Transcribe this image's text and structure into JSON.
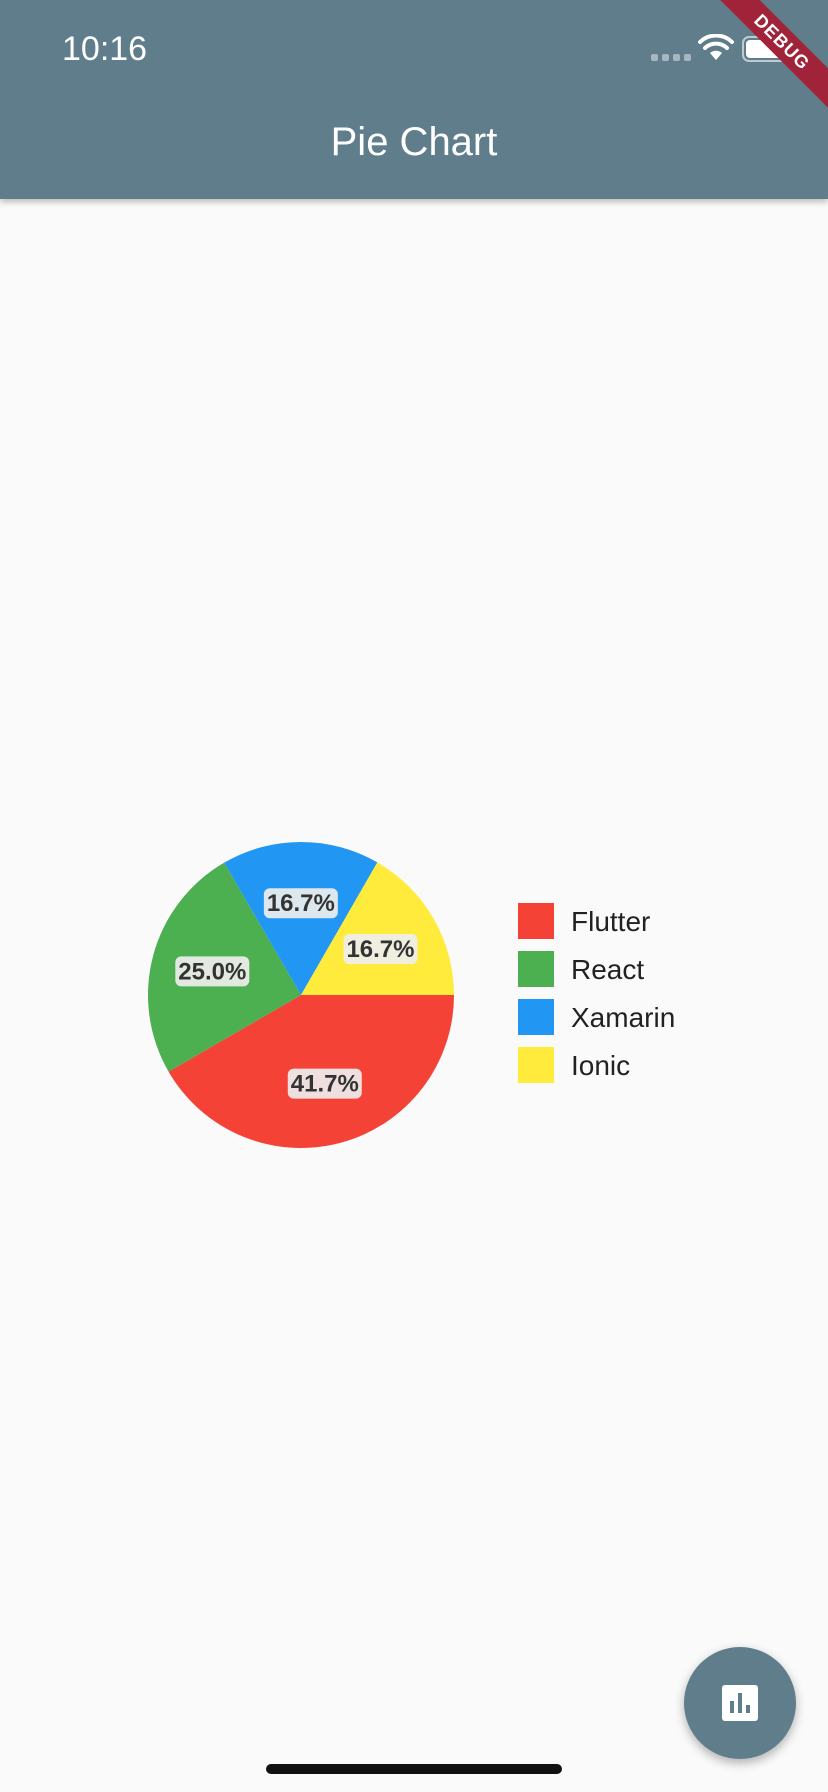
{
  "status_bar": {
    "time": "10:16"
  },
  "app_bar": {
    "title": "Pie Chart"
  },
  "debug_banner": {
    "label": "DEBUG"
  },
  "chart_data": {
    "type": "pie",
    "categories": [
      "Flutter",
      "React",
      "Xamarin",
      "Ionic"
    ],
    "values": [
      41.7,
      25.0,
      16.7,
      16.7
    ],
    "data_labels": [
      "41.7%",
      "25.0%",
      "16.7%",
      "16.7%"
    ],
    "colors": [
      "#f44336",
      "#4caf50",
      "#2196f3",
      "#ffeb3b"
    ],
    "legend_position": "right"
  },
  "fab": {
    "icon": "bar-chart-icon"
  },
  "colors": {
    "primary": "#607d8b",
    "background": "#fafafa"
  }
}
